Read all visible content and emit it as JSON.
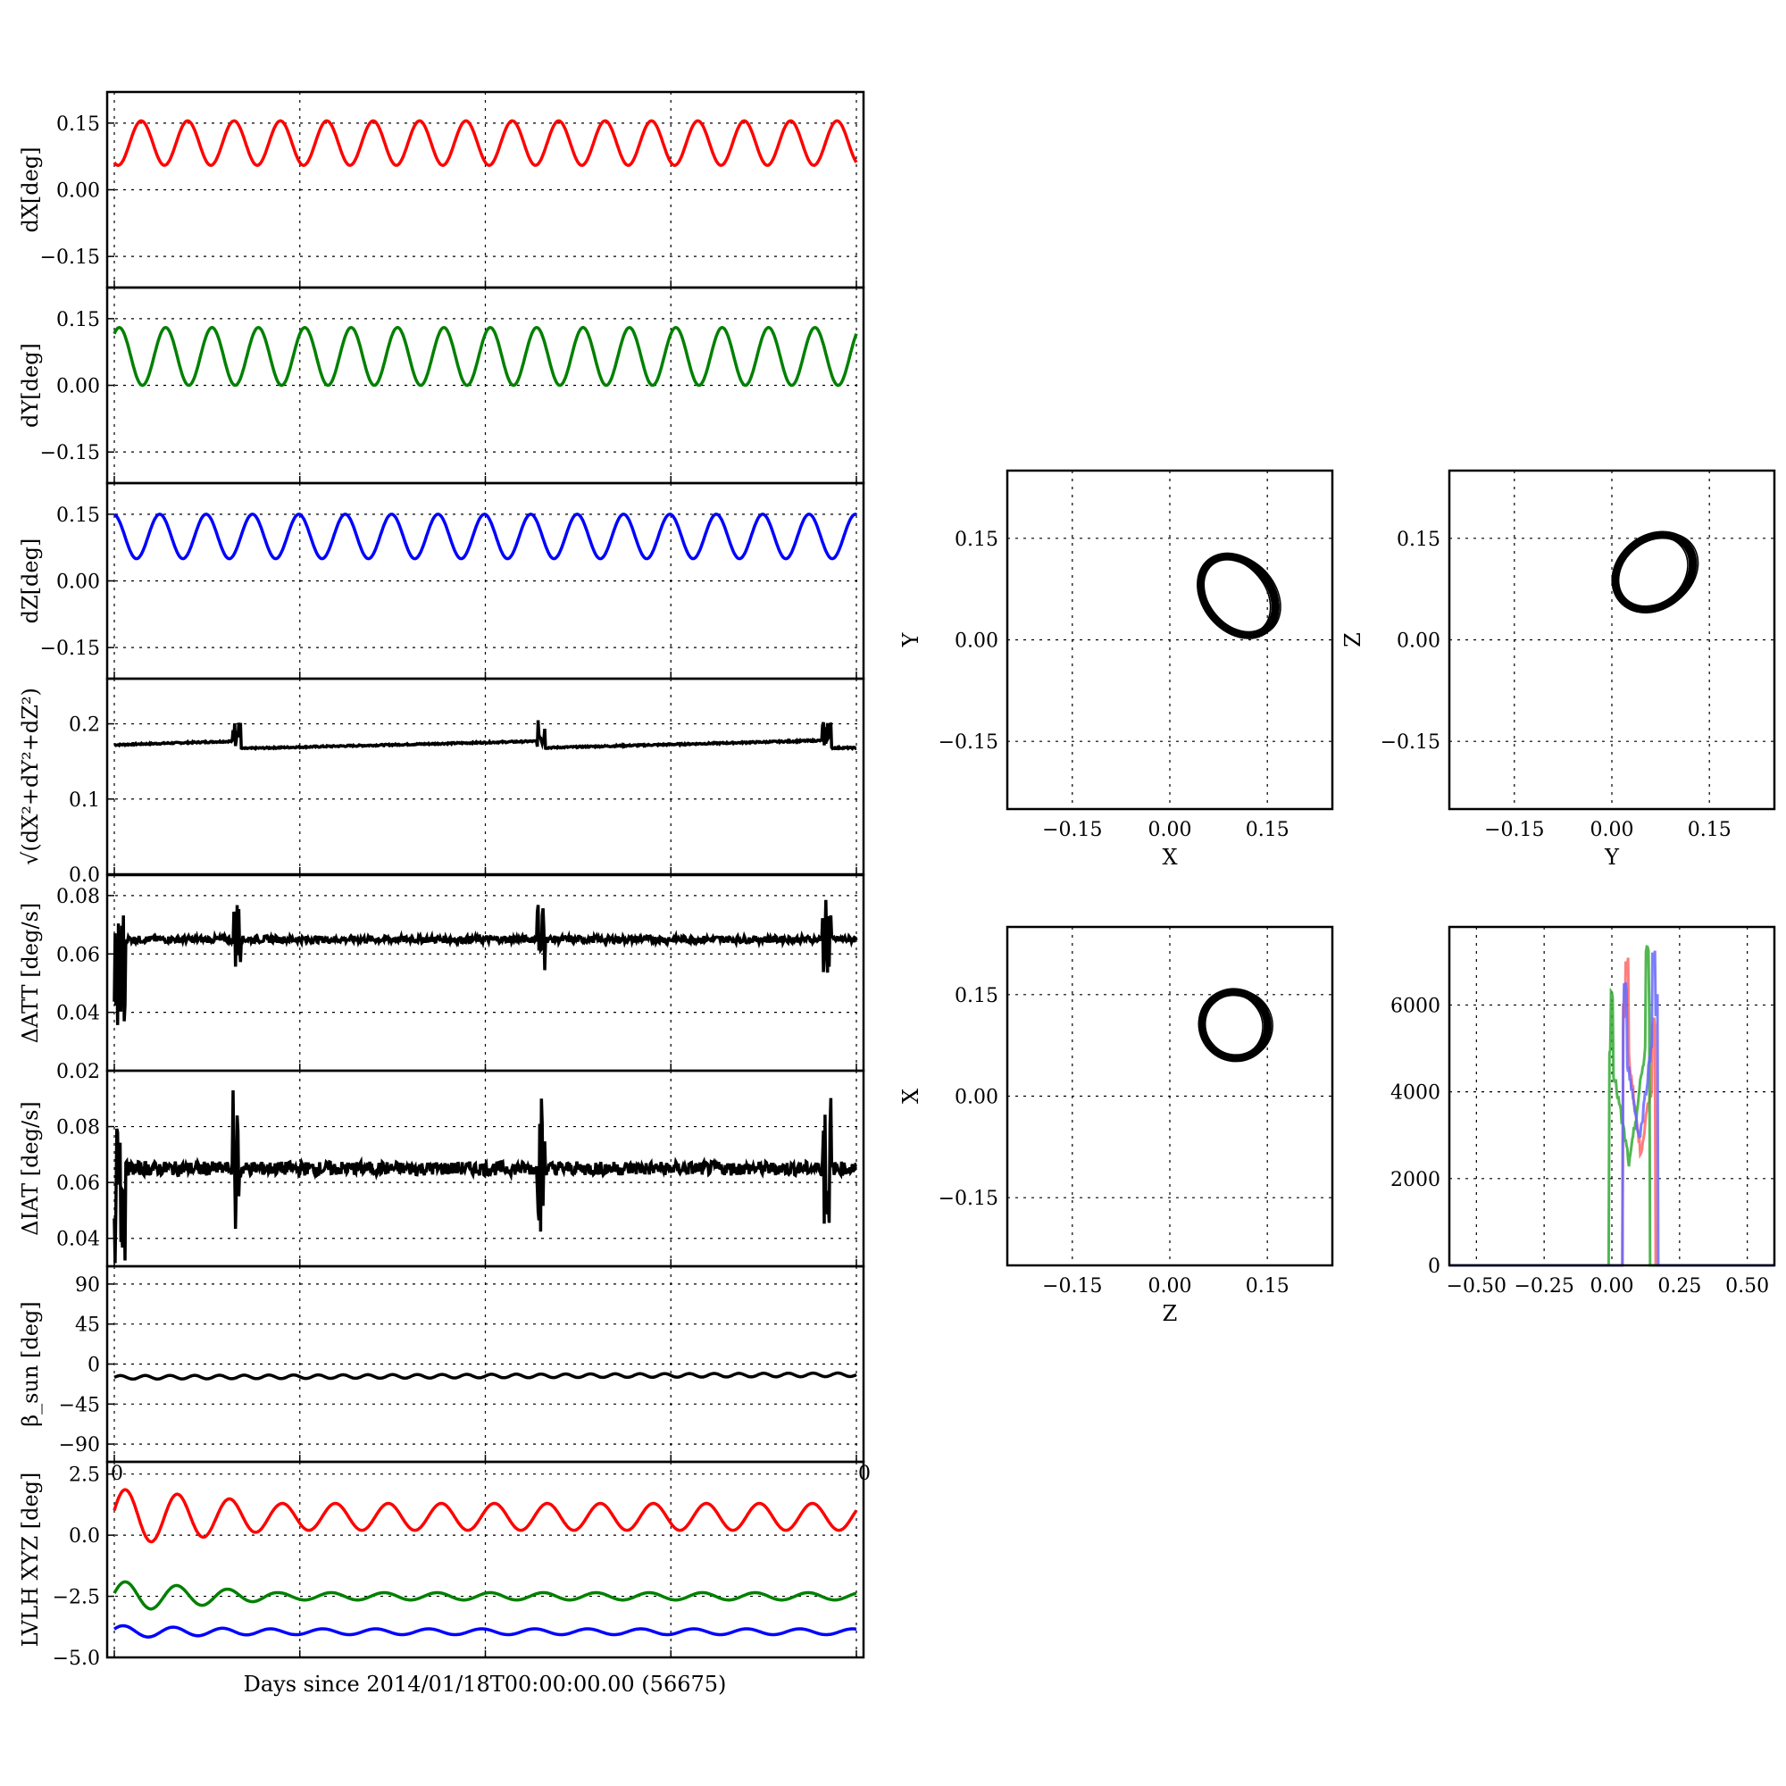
{
  "figure": {
    "shared_xlabel": "Days since 2014/01/18T00:00:00.00 (56675)"
  },
  "chart_data": [
    {
      "id": "dx",
      "type": "line",
      "ylabel": "dX[deg]",
      "ylim": [
        -0.22,
        0.22
      ],
      "yticks": [
        "0.15",
        "0.00",
        "−0.15"
      ],
      "ytick_values": [
        0.15,
        0.0,
        -0.15
      ],
      "grid": true,
      "series": [
        {
          "color": "#ff0000",
          "pattern": "sine",
          "center": 0.105,
          "amplitude": 0.05,
          "cycles": 16,
          "phase": 4.2
        }
      ]
    },
    {
      "id": "dy",
      "type": "line",
      "ylabel": "dY[deg]",
      "ylim": [
        -0.22,
        0.22
      ],
      "yticks": [
        "0.15",
        "0.00",
        "−0.15"
      ],
      "ytick_values": [
        0.15,
        0.0,
        -0.15
      ],
      "grid": true,
      "series": [
        {
          "color": "#008000",
          "pattern": "sine",
          "center": 0.065,
          "amplitude": 0.065,
          "cycles": 16,
          "phase": 0.9
        }
      ]
    },
    {
      "id": "dz",
      "type": "line",
      "ylabel": "dZ[deg]",
      "ylim": [
        -0.22,
        0.22
      ],
      "yticks": [
        "0.15",
        "0.00",
        "−0.15"
      ],
      "ytick_values": [
        0.15,
        0.0,
        -0.15
      ],
      "grid": true,
      "series": [
        {
          "color": "#0000ff",
          "pattern": "sine",
          "center": 0.1,
          "amplitude": 0.05,
          "cycles": 16,
          "phase": 1.7
        }
      ]
    },
    {
      "id": "mag",
      "type": "line",
      "ylabel": "√(dX²+dY²+dZ²)",
      "ylim": [
        0.0,
        0.26
      ],
      "yticks": [
        "0.2",
        "0.1",
        "0.0"
      ],
      "ytick_values": [
        0.2,
        0.1,
        0.0
      ],
      "grid": true,
      "series": [
        {
          "color": "#000000",
          "pattern": "sawtooth",
          "levels": [
            [
              0.0,
              0.172,
              0.177
            ],
            [
              0.165,
              0.167,
              0.177
            ],
            [
              0.575,
              0.168,
              0.178
            ],
            [
              0.96,
              0.168,
              0.168
            ]
          ],
          "bursts": [
            0.165,
            0.575,
            0.96
          ],
          "burst_range": [
            0.168,
            0.205
          ]
        }
      ]
    },
    {
      "id": "datt",
      "type": "line",
      "ylabel": "ΔATT [deg/s]",
      "ylim": [
        0.02,
        0.087
      ],
      "yticks": [
        "0.08",
        "0.06",
        "0.04",
        "0.02"
      ],
      "ytick_values": [
        0.08,
        0.06,
        0.04,
        0.02
      ],
      "grid": true,
      "series": [
        {
          "color": "#000000",
          "pattern": "noise",
          "base": 0.065,
          "noise": 0.0012,
          "bursts": [
            0.165,
            0.575,
            0.96
          ],
          "burst_range": [
            0.052,
            0.079
          ],
          "start_spike": [
            0.03,
            0.082
          ]
        }
      ]
    },
    {
      "id": "diat",
      "type": "line",
      "ylabel": "ΔIAT [deg/s]",
      "ylim": [
        0.03,
        0.1
      ],
      "yticks": [
        "0.08",
        "0.06",
        "0.04"
      ],
      "ytick_values": [
        0.08,
        0.06,
        0.04
      ],
      "grid": true,
      "series": [
        {
          "color": "#000000",
          "pattern": "noise",
          "base": 0.065,
          "noise": 0.0025,
          "bursts": [
            0.165,
            0.575,
            0.96
          ],
          "burst_range": [
            0.042,
            0.093
          ],
          "start_spike": [
            0.03,
            0.08
          ]
        }
      ]
    },
    {
      "id": "beta",
      "type": "line",
      "ylabel": "β_sun [deg]",
      "ylim": [
        -110,
        110
      ],
      "yticks": [
        "90",
        "45",
        "0",
        "−45",
        "−90"
      ],
      "ytick_values": [
        90,
        45,
        0,
        -45,
        -90
      ],
      "grid": true,
      "series": [
        {
          "color": "#000000",
          "pattern": "sine",
          "center": -15,
          "trend": 3,
          "amplitude": 2,
          "cycles": 30,
          "phase": 0
        }
      ]
    },
    {
      "id": "lvlh",
      "type": "line",
      "ylabel": "LVLH XYZ [deg]",
      "ylim": [
        -5.0,
        3.0
      ],
      "yticks": [
        "2.5",
        "0.0",
        "−2.5",
        "−5.0"
      ],
      "ytick_values": [
        2.5,
        0.0,
        -2.5,
        -5.0
      ],
      "x_edge_labels": [
        "0",
        "0"
      ],
      "grid": true,
      "series": [
        {
          "color": "#ff0000",
          "pattern": "sine",
          "center": 0.75,
          "amplitude": 0.55,
          "cycles": 14,
          "phase": 0.5
        },
        {
          "color": "#008000",
          "pattern": "sine",
          "center": -2.5,
          "amplitude": 0.15,
          "cycles": 14,
          "phase": 1
        },
        {
          "color": "#0000ff",
          "pattern": "sine",
          "center": -3.95,
          "amplitude": 0.12,
          "cycles": 14,
          "phase": 2
        }
      ]
    },
    {
      "id": "xy",
      "type": "scatter",
      "xlabel": "X",
      "ylabel": "Y",
      "xlim": [
        -0.25,
        0.25
      ],
      "ylim": [
        -0.25,
        0.25
      ],
      "xticks": [
        "−0.15",
        "0.00",
        "0.15"
      ],
      "yticks": [
        "0.15",
        "0.00",
        "−0.15"
      ],
      "tick_values": [
        -0.15,
        0.0,
        0.15
      ],
      "grid": true,
      "ellipse": {
        "cx": 0.105,
        "cy": 0.065,
        "rx": 0.05,
        "ry": 0.065,
        "color": "#000000"
      }
    },
    {
      "id": "yz",
      "type": "scatter",
      "xlabel": "Y",
      "ylabel": "Z",
      "xlim": [
        -0.25,
        0.25
      ],
      "ylim": [
        -0.25,
        0.25
      ],
      "xticks": [
        "−0.15",
        "0.00",
        "0.15"
      ],
      "yticks": [
        "0.15",
        "0.00",
        "−0.15"
      ],
      "tick_values": [
        -0.15,
        0.0,
        0.15
      ],
      "grid": true,
      "ellipse": {
        "cx": 0.065,
        "cy": 0.1,
        "rx": 0.065,
        "ry": 0.05,
        "color": "#000000"
      }
    },
    {
      "id": "zx",
      "type": "scatter",
      "xlabel": "Z",
      "ylabel": "X",
      "xlim": [
        -0.25,
        0.25
      ],
      "ylim": [
        -0.25,
        0.25
      ],
      "xticks": [
        "−0.15",
        "0.00",
        "0.15"
      ],
      "yticks": [
        "0.15",
        "0.00",
        "−0.15"
      ],
      "tick_values": [
        -0.15,
        0.0,
        0.15
      ],
      "grid": true,
      "ellipse": {
        "cx": 0.1,
        "cy": 0.105,
        "rx": 0.05,
        "ry": 0.05,
        "color": "#000000"
      }
    },
    {
      "id": "hist",
      "type": "line",
      "xlim": [
        -0.6,
        0.6
      ],
      "ylim": [
        0,
        7800
      ],
      "xticks": [
        "−0.50",
        "−0.25",
        "0.00",
        "0.25",
        "0.50"
      ],
      "xtick_values": [
        -0.5,
        -0.25,
        0.0,
        0.25,
        0.5
      ],
      "yticks": [
        "6000",
        "4000",
        "2000",
        "0"
      ],
      "ytick_values": [
        6000,
        4000,
        2000,
        0
      ],
      "grid": true,
      "series": [
        {
          "color": "#ff6666",
          "peaks": [
            [
              0.055,
              7000
            ],
            [
              0.155,
              5600
            ]
          ],
          "valley": 2600,
          "range": [
            0.04,
            0.16
          ]
        },
        {
          "color": "#33aa33",
          "peaks": [
            [
              0.0,
              6300
            ],
            [
              0.13,
              7300
            ]
          ],
          "valley": 2300,
          "range": [
            -0.01,
            0.14
          ]
        },
        {
          "color": "#6666ff",
          "peaks": [
            [
              0.05,
              6400
            ],
            [
              0.155,
              7200
            ]
          ],
          "valley": 2900,
          "range": [
            0.04,
            0.17
          ]
        }
      ]
    }
  ]
}
